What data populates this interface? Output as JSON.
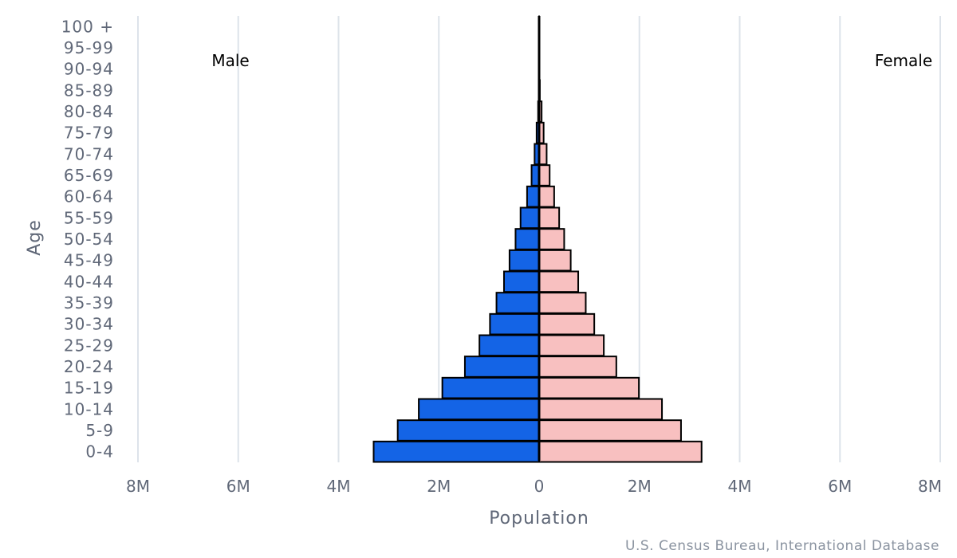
{
  "chart_data": {
    "type": "bar",
    "orientation": "horizontal-pyramid",
    "categories": [
      "0-4",
      "5-9",
      "10-14",
      "15-19",
      "20-24",
      "25-29",
      "30-34",
      "35-39",
      "40-44",
      "45-49",
      "50-54",
      "55-59",
      "60-64",
      "65-69",
      "70-74",
      "75-79",
      "80-84",
      "85-89",
      "90-94",
      "95-99",
      "100 +"
    ],
    "series": [
      {
        "name": "Male",
        "color": "#1464e6",
        "values": [
          3300000,
          2820000,
          2400000,
          1930000,
          1480000,
          1190000,
          980000,
          850000,
          700000,
          590000,
          470000,
          370000,
          240000,
          150000,
          90000,
          50000,
          20000,
          8000,
          3000,
          1000,
          200
        ]
      },
      {
        "name": "Female",
        "color": "#f8c0c0",
        "values": [
          3240000,
          2830000,
          2450000,
          1990000,
          1540000,
          1290000,
          1100000,
          930000,
          780000,
          630000,
          500000,
          400000,
          300000,
          210000,
          150000,
          90000,
          50000,
          15000,
          5000,
          1500,
          300
        ]
      }
    ],
    "xlabel": "Population",
    "ylabel": "Age",
    "xlim": [
      -8000000,
      8000000
    ],
    "xticks": [
      -8000000,
      -6000000,
      -4000000,
      -2000000,
      0,
      2000000,
      4000000,
      6000000,
      8000000
    ],
    "xtick_labels": [
      "8M",
      "6M",
      "4M",
      "2M",
      "0",
      "2M",
      "4M",
      "6M",
      "8M"
    ],
    "grid": true,
    "legend_position": "top",
    "source": "U.S. Census Bureau, International Database"
  }
}
